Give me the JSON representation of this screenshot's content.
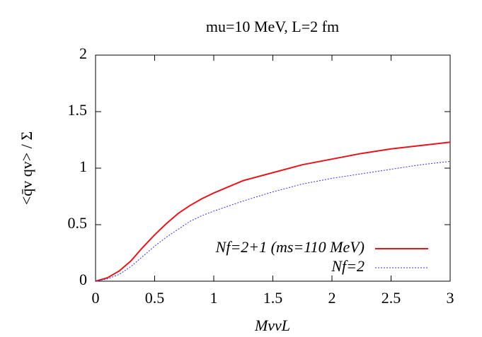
{
  "chart_data": {
    "type": "line",
    "title": "mu=10 MeV, L=2 fm",
    "x_label": "MvvL",
    "y_label": "<q̄v qv> / Σ",
    "x": [
      0,
      0.1,
      0.2,
      0.3,
      0.4,
      0.5,
      0.6,
      0.7,
      0.8,
      0.9,
      1,
      1.25,
      1.5,
      1.75,
      2,
      2.25,
      2.5,
      2.75,
      3
    ],
    "series": [
      {
        "name": "Nf=2+1 (ms=110 MeV)",
        "color": "#e8141c",
        "dashed": false,
        "values": [
          0,
          0.03,
          0.09,
          0.18,
          0.3,
          0.41,
          0.51,
          0.6,
          0.67,
          0.73,
          0.78,
          0.89,
          0.96,
          1.03,
          1.08,
          1.13,
          1.17,
          1.2,
          1.23
        ]
      },
      {
        "name": "Nf=2",
        "color": "#3030e0",
        "dashed": true,
        "values": [
          0,
          0.02,
          0.06,
          0.13,
          0.22,
          0.31,
          0.39,
          0.46,
          0.53,
          0.58,
          0.62,
          0.71,
          0.79,
          0.86,
          0.91,
          0.95,
          0.99,
          1.03,
          1.06
        ]
      }
    ],
    "xlim": [
      0,
      3
    ],
    "xticks": [
      0,
      0.5,
      1,
      1.5,
      2,
      2.5,
      3
    ],
    "ylim": [
      0,
      2
    ],
    "yticks": [
      0,
      0.5,
      1,
      1.5,
      2
    ],
    "legend": "lower-right"
  }
}
